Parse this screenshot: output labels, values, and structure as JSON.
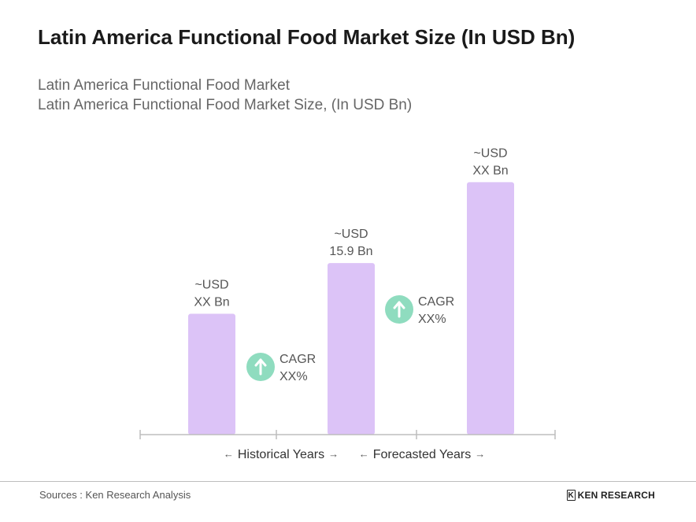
{
  "title": "Latin America Functional Food Market Size (In USD Bn)",
  "subtitle_line1": "Latin America Functional Food Market",
  "subtitle_line2": "Latin America Functional Food Market Size, (In USD Bn)",
  "colors": {
    "bar": "#dcc3f7",
    "cagr_circle": "#8fdcbf",
    "axis": "#bdbdbd"
  },
  "chart_data": {
    "type": "bar",
    "categories": [
      "",
      "",
      ""
    ],
    "values": [
      11.2,
      15.9,
      23.4
    ],
    "labels": [
      [
        "~USD",
        "XX Bn"
      ],
      [
        "~USD",
        "15.9 Bn"
      ],
      [
        "~USD",
        "XX Bn"
      ]
    ],
    "ylim": [
      0,
      25
    ],
    "cagr": [
      {
        "label": "CAGR",
        "value": "XX%",
        "icon": "arrow-up-icon"
      },
      {
        "label": "CAGR",
        "value": "XX%",
        "icon": "arrow-up-icon"
      }
    ],
    "periods": [
      {
        "label": "Historical Years"
      },
      {
        "label": "Forecasted Years"
      }
    ],
    "grid": false
  },
  "footer": {
    "source": "Sources : Ken Research Analysis",
    "logo_text": "KEN RESEARCH",
    "logo_mark": "K"
  }
}
